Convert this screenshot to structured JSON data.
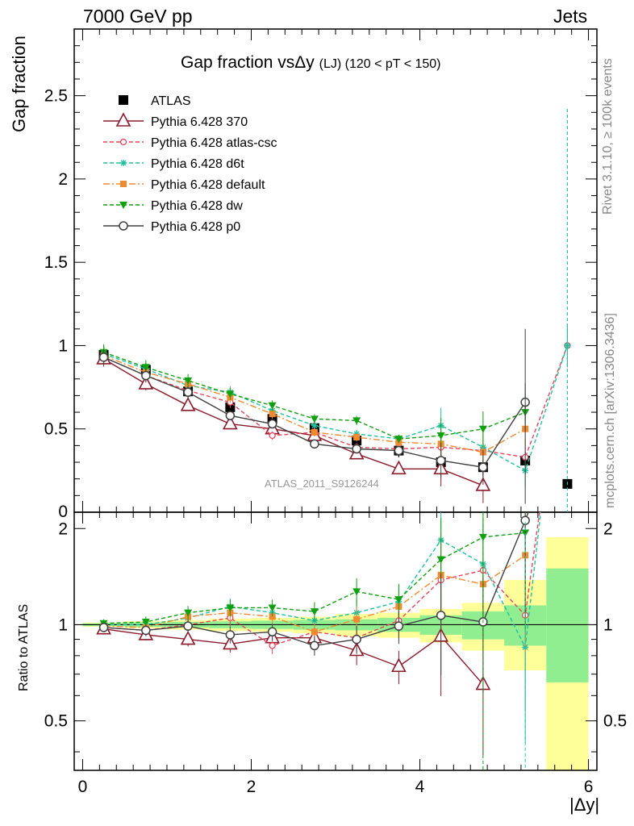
{
  "header": {
    "left": "7000 GeV pp",
    "right": "Jets"
  },
  "side_text": {
    "rivet": "Rivet 3.1.10, ≥ 100k events",
    "mcplots": "mcplots.cern.ch [arXiv:1306.3436]"
  },
  "watermark": "ATLAS_2011_S9126244",
  "colors": {
    "ATLAS": "#000000",
    "p370": "#8b1a2b",
    "atlas_csc": "#e8445a",
    "d6t": "#20c0a0",
    "default": "#f08a30",
    "dw": "#10a010",
    "p0": "#404040",
    "band_inner": "#90ee90",
    "band_outer": "#ffff99"
  },
  "chart_data": [
    {
      "type": "scatter",
      "title_main": "Gap fraction vsΔy",
      "title_sub": "(LJ) (120 < pT < 150)",
      "ylabel": "Gap fraction",
      "xlim": [
        -0.1,
        6.1
      ],
      "ylim": [
        0,
        2.9
      ],
      "yticks": [
        "0.5",
        "1",
        "1.5",
        "2",
        "2.5"
      ],
      "x": [
        0.25,
        0.75,
        1.25,
        1.75,
        2.25,
        2.75,
        3.25,
        3.75,
        4.25,
        4.75,
        5.25,
        5.75
      ],
      "series": [
        {
          "name": "ATLAS",
          "key": "ATLAS",
          "marker": "square",
          "line": "none",
          "values": [
            0.945,
            0.855,
            0.725,
            0.63,
            0.56,
            0.505,
            0.43,
            0.37,
            0.3,
            0.27,
            0.31,
            0.17
          ]
        },
        {
          "name": "Pythia 6.428 370",
          "key": "p370",
          "marker": "triangle-open",
          "values": [
            0.92,
            0.77,
            0.64,
            0.53,
            0.5,
            0.46,
            0.35,
            0.26,
            0.26,
            0.16,
            null,
            null
          ]
        },
        {
          "name": "Pythia 6.428 atlas-csc",
          "key": "atlas_csc",
          "marker": "circle-open-small",
          "values": [
            0.93,
            0.82,
            0.73,
            0.66,
            0.46,
            0.48,
            0.39,
            0.38,
            0.39,
            0.37,
            0.33,
            1.0
          ]
        },
        {
          "name": "Pythia 6.428 d6t",
          "key": "d6t",
          "marker": "star",
          "values": [
            0.95,
            0.86,
            0.76,
            0.72,
            0.61,
            0.52,
            0.47,
            0.44,
            0.52,
            0.39,
            0.25,
            1.0
          ]
        },
        {
          "name": "Pythia 6.428 default",
          "key": "default",
          "marker": "square-small",
          "values": [
            0.94,
            0.84,
            0.77,
            0.69,
            0.59,
            0.48,
            0.45,
            0.42,
            0.41,
            0.36,
            0.5,
            null
          ]
        },
        {
          "name": "Pythia 6.428 dw",
          "key": "dw",
          "marker": "triangle-down",
          "values": [
            0.96,
            0.87,
            0.79,
            0.71,
            0.64,
            0.56,
            0.55,
            0.44,
            0.46,
            0.5,
            0.6,
            null
          ]
        },
        {
          "name": "Pythia 6.428 p0",
          "key": "p0",
          "marker": "circle-open",
          "values": [
            0.93,
            0.82,
            0.72,
            0.58,
            0.53,
            0.41,
            0.38,
            0.37,
            0.31,
            0.27,
            0.66,
            null
          ]
        }
      ]
    },
    {
      "type": "line",
      "ylabel": "Ratio to ATLAS",
      "xlabel": "|Δy|",
      "xlim": [
        -0.1,
        6.1
      ],
      "ylim": [
        0.35,
        2.25
      ],
      "yticks": [
        "0.5",
        "1",
        "2"
      ],
      "xticks": [
        "0",
        "2",
        "4",
        "6"
      ],
      "bands": [
        {
          "x": [
            0,
            0.5
          ],
          "inner": [
            0.99,
            1.01
          ],
          "outer": [
            0.985,
            1.015
          ]
        },
        {
          "x": [
            0.5,
            1.0
          ],
          "inner": [
            0.985,
            1.015
          ],
          "outer": [
            0.975,
            1.025
          ]
        },
        {
          "x": [
            1.0,
            1.5
          ],
          "inner": [
            0.98,
            1.02
          ],
          "outer": [
            0.965,
            1.035
          ]
        },
        {
          "x": [
            1.5,
            2.0
          ],
          "inner": [
            0.975,
            1.025
          ],
          "outer": [
            0.955,
            1.045
          ]
        },
        {
          "x": [
            2.0,
            2.5
          ],
          "inner": [
            0.97,
            1.03
          ],
          "outer": [
            0.95,
            1.05
          ]
        },
        {
          "x": [
            2.5,
            3.0
          ],
          "inner": [
            0.965,
            1.035
          ],
          "outer": [
            0.94,
            1.06
          ]
        },
        {
          "x": [
            3.0,
            3.5
          ],
          "inner": [
            0.96,
            1.04
          ],
          "outer": [
            0.92,
            1.08
          ]
        },
        {
          "x": [
            3.5,
            4.0
          ],
          "inner": [
            0.95,
            1.05
          ],
          "outer": [
            0.91,
            1.09
          ]
        },
        {
          "x": [
            4.0,
            4.5
          ],
          "inner": [
            0.93,
            1.07
          ],
          "outer": [
            0.88,
            1.12
          ]
        },
        {
          "x": [
            4.5,
            5.0
          ],
          "inner": [
            0.9,
            1.1
          ],
          "outer": [
            0.83,
            1.17
          ]
        },
        {
          "x": [
            5.0,
            5.5
          ],
          "inner": [
            0.86,
            1.15
          ],
          "outer": [
            0.72,
            1.38
          ]
        },
        {
          "x": [
            5.5,
            6.0
          ],
          "inner": [
            0.66,
            1.5
          ],
          "outer": [
            0.35,
            1.88
          ]
        }
      ],
      "x": [
        0.25,
        0.75,
        1.25,
        1.75,
        2.25,
        2.75,
        3.25,
        3.75,
        4.25,
        4.75,
        5.25
      ],
      "series": [
        {
          "key": "p370",
          "marker": "triangle-open",
          "values": [
            0.97,
            0.93,
            0.9,
            0.87,
            0.91,
            0.91,
            0.83,
            0.74,
            0.92,
            0.65,
            null
          ]
        },
        {
          "key": "atlas_csc",
          "marker": "circle-open-small",
          "values": [
            0.98,
            0.96,
            1.0,
            1.05,
            0.86,
            0.95,
            0.91,
            1.03,
            1.38,
            1.48,
            1.07
          ]
        },
        {
          "key": "d6t",
          "marker": "star",
          "values": [
            1.0,
            1.0,
            1.05,
            1.14,
            1.09,
            1.03,
            1.09,
            1.18,
            1.84,
            1.55,
            0.85
          ]
        },
        {
          "key": "default",
          "marker": "square-small",
          "values": [
            0.99,
            0.98,
            1.06,
            1.09,
            1.06,
            0.95,
            1.04,
            1.14,
            1.43,
            1.34,
            1.65
          ]
        },
        {
          "key": "dw",
          "marker": "triangle-down",
          "values": [
            1.01,
            1.02,
            1.09,
            1.13,
            1.13,
            1.1,
            1.27,
            1.2,
            1.6,
            1.88,
            1.94
          ]
        },
        {
          "key": "p0",
          "marker": "circle-open",
          "values": [
            0.98,
            0.96,
            0.99,
            0.93,
            0.95,
            0.86,
            0.9,
            0.99,
            1.07,
            1.02,
            2.12
          ]
        }
      ]
    }
  ]
}
